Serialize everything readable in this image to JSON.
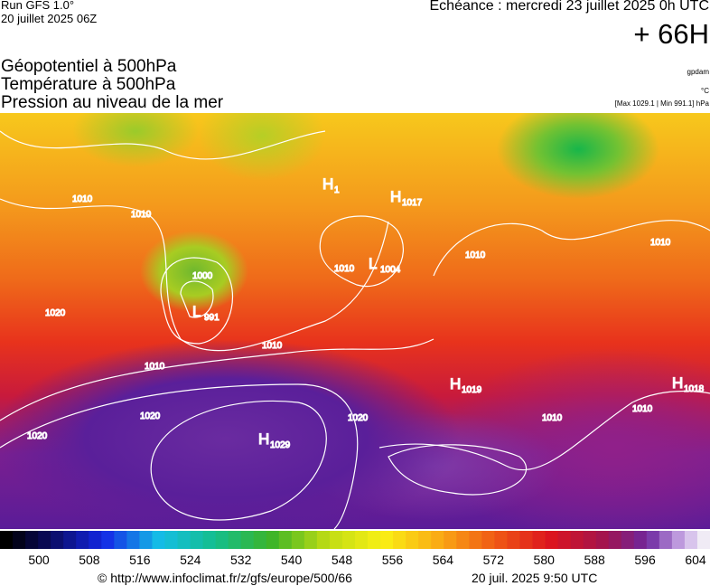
{
  "header": {
    "run": "Run GFS 1.0°",
    "date": "20 juillet 2025 06Z",
    "echeance": "Echéance : mercredi 23 juillet 2025 0h UTC",
    "lead": "+ 66H",
    "titles": [
      "Géopotentiel à 500hPa",
      "Température à 500hPa",
      "Pression au niveau de la mer"
    ],
    "source": "gpdam",
    "unit": "°C",
    "range": "[Max 1029.1 | Min 991.1] hPa"
  },
  "map": {
    "centers": [
      {
        "type": "H",
        "value": "1017"
      },
      {
        "type": "H",
        "value": "1"
      },
      {
        "type": "L",
        "value": "1004"
      },
      {
        "type": "L",
        "value": "991"
      },
      {
        "type": "H",
        "value": "1019"
      },
      {
        "type": "H",
        "value": "1018"
      },
      {
        "type": "H",
        "value": "1029"
      }
    ],
    "isobars": [
      "1010",
      "1010",
      "1000",
      "1010",
      "1010",
      "1010",
      "1020",
      "1020",
      "1020",
      "1020",
      "1010",
      "1010",
      "1010",
      "1010"
    ]
  },
  "colorbar": {
    "ticks": [
      500,
      508,
      516,
      524,
      532,
      540,
      548,
      556,
      564,
      572,
      580,
      588,
      596,
      604
    ]
  },
  "footer": {
    "url": "© http://www.infoclimat.fr/z/gfs/europe/500/66",
    "stamp": "20 juil. 2025  9:50 UTC"
  }
}
